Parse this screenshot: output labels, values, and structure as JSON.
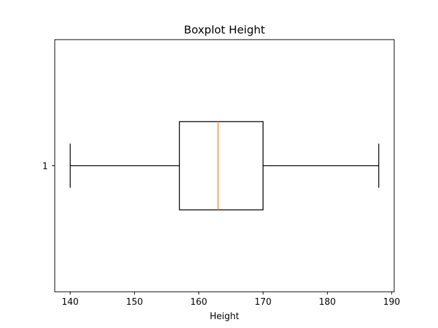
{
  "chart_data": {
    "type": "boxplot",
    "title": "Boxplot Height",
    "xlabel": "Height",
    "ylabel": "",
    "orientation": "horizontal",
    "xlim": [
      137.6,
      190.4
    ],
    "xticks": [
      140,
      150,
      160,
      170,
      180,
      190
    ],
    "categories": [
      "1"
    ],
    "boxes": [
      {
        "label": "1",
        "whisker_low": 140,
        "q1": 157,
        "median": 163,
        "q3": 170,
        "whisker_high": 188
      }
    ],
    "colors": {
      "box": "#000000",
      "median": "#ff7f0e",
      "axes": "#000000"
    }
  }
}
